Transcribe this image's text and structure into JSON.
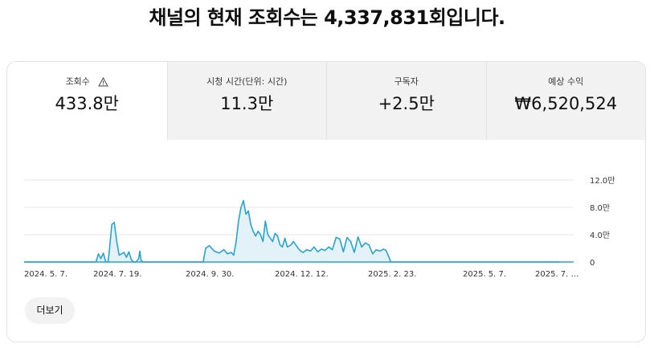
{
  "headline": "채널의 현재 조회수는 4,337,831회입니다.",
  "tabs": [
    {
      "label": "조회수",
      "value": "433.8만",
      "selected": true,
      "icon": "warning-icon"
    },
    {
      "label": "시청 시간(단위: 시간)",
      "value": "11.3만"
    },
    {
      "label": "구독자",
      "value": "+2.5만"
    },
    {
      "label": "예상 수익",
      "value": "₩6,520,524"
    }
  ],
  "chart_data": {
    "type": "area",
    "color": "#2aa3cc",
    "fill": "#e3f2f8",
    "x_tick_labels": [
      "2024. 5. 7.",
      "2024. 7. 19.",
      "2024. 9. 30.",
      "2024. 12. 12.",
      "2025. 2. 23.",
      "2025. 5. 7.",
      "2025. 7. …"
    ],
    "y_tick_labels": [
      "12.0만",
      "8.0만",
      "4.0만",
      "0"
    ],
    "ylim": [
      0,
      120000
    ],
    "grid": true,
    "x": [
      "2024-05-07",
      "2024-07-05",
      "2024-07-07",
      "2024-07-09",
      "2024-07-11",
      "2024-07-13",
      "2024-07-15",
      "2024-07-16",
      "2024-07-18",
      "2024-07-20",
      "2024-07-22",
      "2024-07-24",
      "2024-07-26",
      "2024-07-28",
      "2024-07-30",
      "2024-08-01",
      "2024-08-03",
      "2024-08-05",
      "2024-08-07",
      "2024-08-09",
      "2024-08-10",
      "2024-08-11",
      "2024-08-13",
      "2024-08-15",
      "2024-09-30",
      "2024-10-01",
      "2024-10-03",
      "2024-10-06",
      "2024-10-10",
      "2024-10-14",
      "2024-10-18",
      "2024-10-21",
      "2024-10-24",
      "2024-10-26",
      "2024-10-28",
      "2024-10-30",
      "2024-11-01",
      "2024-11-03",
      "2024-11-05",
      "2024-11-07",
      "2024-11-09",
      "2024-11-11",
      "2024-11-13",
      "2024-11-15",
      "2024-11-17",
      "2024-11-19",
      "2024-11-21",
      "2024-11-23",
      "2024-11-25",
      "2024-11-27",
      "2024-11-29",
      "2024-12-01",
      "2024-12-03",
      "2024-12-05",
      "2024-12-07",
      "2024-12-09",
      "2024-12-12",
      "2024-12-14",
      "2024-12-16",
      "2024-12-18",
      "2024-12-20",
      "2024-12-22",
      "2024-12-25",
      "2024-12-28",
      "2024-12-31",
      "2025-01-03",
      "2025-01-06",
      "2025-01-09",
      "2025-01-12",
      "2025-01-15",
      "2025-01-18",
      "2025-01-21",
      "2025-01-24",
      "2025-01-27",
      "2025-01-30",
      "2025-02-02",
      "2025-02-05",
      "2025-02-08",
      "2025-02-11",
      "2025-02-14",
      "2025-02-17",
      "2025-02-20",
      "2025-02-23",
      "2025-02-26",
      "2025-02-28",
      "2025-03-02",
      "2025-03-04",
      "2025-03-06",
      "2025-03-08",
      "2025-07-20"
    ],
    "y": [
      0,
      0,
      12000,
      5000,
      13000,
      0,
      0,
      18000,
      55000,
      58000,
      30000,
      10000,
      12000,
      14000,
      7000,
      15000,
      3000,
      0,
      0,
      5000,
      16000,
      2000,
      0,
      0,
      0,
      0,
      20000,
      24000,
      16000,
      13000,
      18000,
      12000,
      14000,
      10000,
      30000,
      60000,
      80000,
      90000,
      70000,
      75000,
      55000,
      45000,
      38000,
      45000,
      40000,
      30000,
      60000,
      40000,
      35000,
      30000,
      42000,
      38000,
      25000,
      22000,
      35000,
      22000,
      25000,
      30000,
      25000,
      20000,
      16000,
      14000,
      18000,
      16000,
      22000,
      15000,
      19000,
      17000,
      22000,
      18000,
      36000,
      34000,
      15000,
      36000,
      30000,
      14000,
      37000,
      22000,
      28000,
      25000,
      12000,
      18000,
      16000,
      19000,
      17000,
      9000,
      0,
      0,
      0,
      0
    ]
  },
  "more_button": "더보기"
}
